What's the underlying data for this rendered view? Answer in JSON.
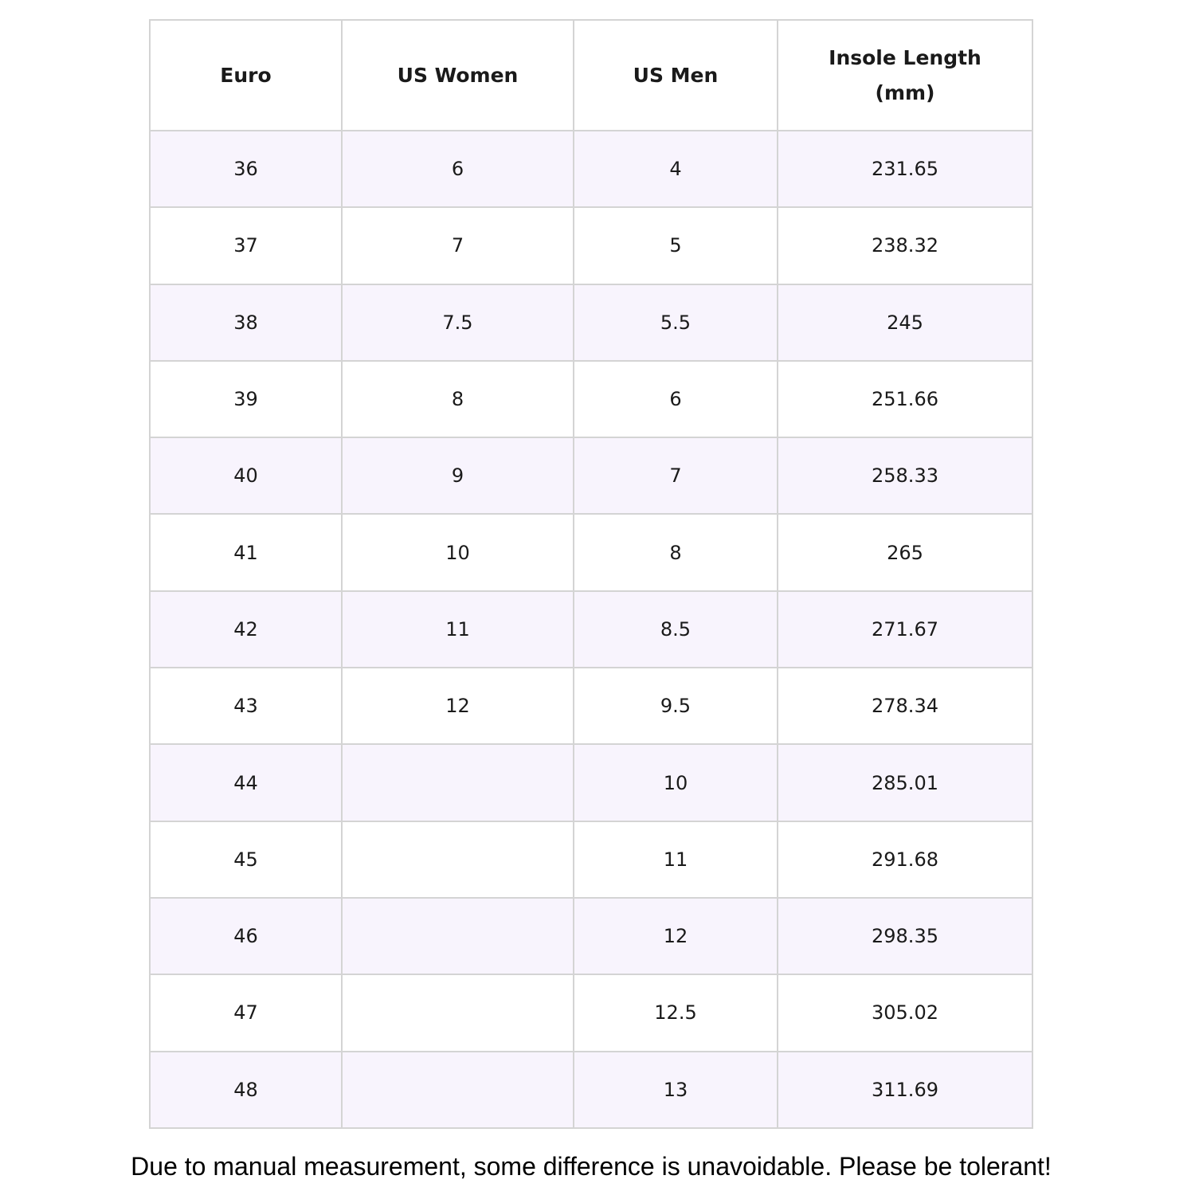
{
  "table": {
    "headers": [
      "Euro",
      "US Women",
      "US Men",
      "Insole Length\n(mm)"
    ],
    "rows": [
      [
        "36",
        "6",
        "4",
        "231.65"
      ],
      [
        "37",
        "7",
        "5",
        "238.32"
      ],
      [
        "38",
        "7.5",
        "5.5",
        "245"
      ],
      [
        "39",
        "8",
        "6",
        "251.66"
      ],
      [
        "40",
        "9",
        "7",
        "258.33"
      ],
      [
        "41",
        "10",
        "8",
        "265"
      ],
      [
        "42",
        "11",
        "8.5",
        "271.67"
      ],
      [
        "43",
        "12",
        "9.5",
        "278.34"
      ],
      [
        "44",
        "",
        "10",
        "285.01"
      ],
      [
        "45",
        "",
        "11",
        "291.68"
      ],
      [
        "46",
        "",
        "12",
        "298.35"
      ],
      [
        "47",
        "",
        "12.5",
        "305.02"
      ],
      [
        "48",
        "",
        "13",
        "311.69"
      ]
    ]
  },
  "footer_note": "Due to manual measurement, some difference is unavoidable. Please be tolerant!",
  "colors": {
    "stripe": "#f8f4fd",
    "border": "#d4d4d4"
  }
}
